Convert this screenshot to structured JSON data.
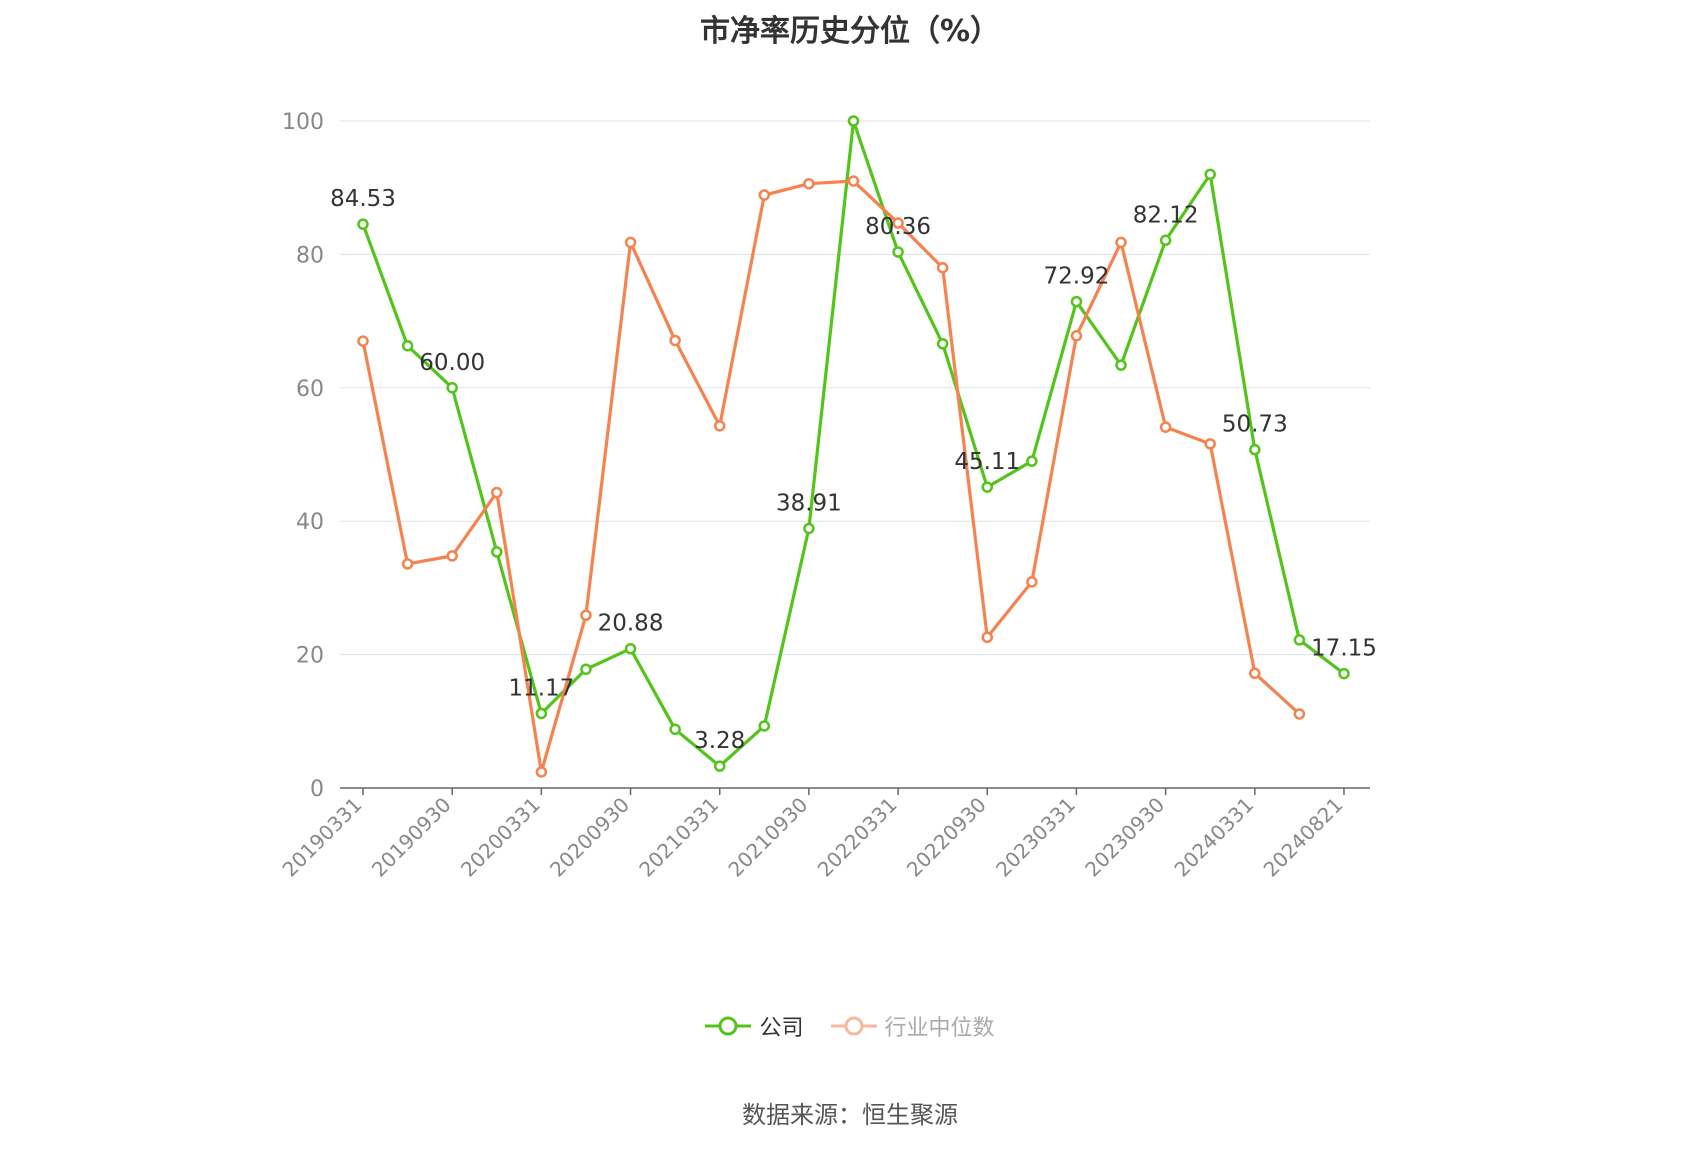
{
  "title": "市净率历史分位（%）",
  "source_text": "数据来源：恒生聚源",
  "colors": {
    "company": "#52c41a",
    "industry": "#f5834f",
    "industry_legend": "#f7b8a0",
    "grid": "#dde3f0",
    "axis": "#666666",
    "tick_text": "#888888"
  },
  "chart_data": {
    "type": "line",
    "title": "市净率历史分位（%）",
    "ylim": [
      0,
      100
    ],
    "yticks": [
      0,
      20,
      40,
      60,
      80,
      100
    ],
    "grid": true,
    "legend_position": "bottom",
    "x": [
      "20190331",
      "20190630",
      "20190930",
      "20191231",
      "20200331",
      "20200630",
      "20200930",
      "20201231",
      "20210331",
      "20210630",
      "20210930",
      "20211231",
      "20220331",
      "20220630",
      "20220930",
      "20221231",
      "20230331",
      "20230630",
      "20230930",
      "20231231",
      "20240331",
      "20240630",
      "20240821"
    ],
    "x_tick_labels": [
      "20190331",
      "20190930",
      "20200331",
      "20200930",
      "20210331",
      "20210930",
      "20220331",
      "20220930",
      "20230331",
      "20230930",
      "20240331",
      "20240821"
    ],
    "x_tick_index": [
      0,
      2,
      4,
      6,
      8,
      10,
      12,
      14,
      16,
      18,
      20,
      22
    ],
    "series": [
      {
        "name": "公司",
        "color": "#52c41a",
        "values": [
          84.53,
          66.3,
          60.0,
          35.4,
          11.17,
          17.8,
          20.88,
          8.8,
          3.28,
          9.3,
          38.91,
          100.0,
          80.36,
          66.6,
          45.11,
          49.0,
          72.92,
          63.4,
          82.12,
          92.0,
          50.73,
          22.2,
          17.15
        ],
        "labels": [
          "84.53",
          "",
          "60.00",
          "",
          "11.17",
          "",
          "20.88",
          "",
          "3.28",
          "",
          "38.91",
          "",
          "80.36",
          "",
          "45.11",
          "",
          "72.92",
          "",
          "82.12",
          "",
          "50.73",
          "",
          "17.15"
        ]
      },
      {
        "name": "行业中位数",
        "color": "#f5834f",
        "values": [
          67.0,
          33.6,
          34.8,
          44.3,
          2.4,
          25.9,
          81.8,
          67.1,
          54.3,
          88.9,
          90.6,
          91.0,
          84.7,
          78.0,
          22.6,
          30.9,
          67.8,
          81.8,
          54.1,
          51.6,
          17.2,
          11.1,
          null
        ]
      }
    ]
  },
  "legend": [
    {
      "label": "公司"
    },
    {
      "label": "行业中位数"
    }
  ]
}
